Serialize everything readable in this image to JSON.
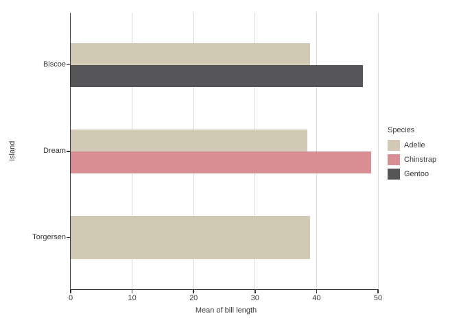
{
  "chart_data": {
    "type": "bar",
    "orientation": "horizontal",
    "title": "",
    "xlabel": "Mean of bill length",
    "ylabel": "Island",
    "xlim": [
      0,
      50
    ],
    "xticks": [
      0,
      10,
      20,
      30,
      40,
      50
    ],
    "grid": "vertical-major-only",
    "legend": {
      "title": "Species",
      "position": "right"
    },
    "categories": [
      "Biscoe",
      "Dream",
      "Torgersen"
    ],
    "series": [
      {
        "name": "Adelie",
        "color": "#d1c9b4",
        "values": [
          38.98,
          38.5,
          38.95
        ]
      },
      {
        "name": "Chinstrap",
        "color": "#d88e92",
        "values": [
          null,
          48.83,
          null
        ]
      },
      {
        "name": "Gentoo",
        "color": "#565658",
        "values": [
          47.5,
          null,
          null
        ]
      }
    ]
  },
  "style": {
    "background": "#ffffff",
    "axis_color": "#333333",
    "gridline_color": "#d9d9d9",
    "text_color": "#3a3a3a"
  }
}
